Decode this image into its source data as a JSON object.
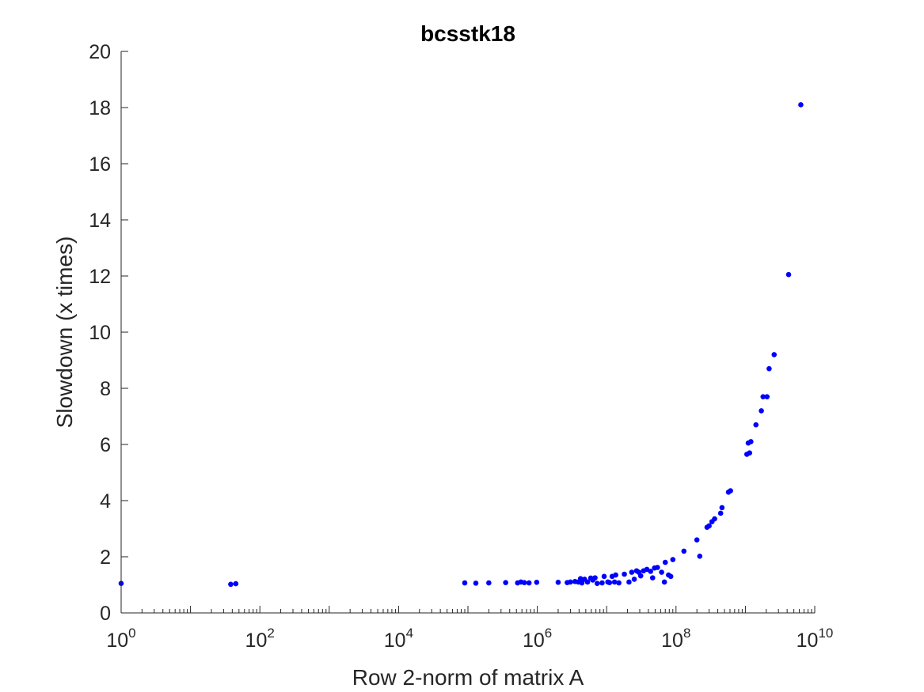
{
  "chart_data": {
    "type": "scatter",
    "title": "bcsstk18",
    "xlabel": "Row 2-norm of matrix A",
    "ylabel": "Slowdown (x times)",
    "x_scale": "log",
    "xlim": [
      1,
      10000000000
    ],
    "ylim": [
      0,
      20
    ],
    "x_tick_labels": [
      {
        "base": "10",
        "exp": "0"
      },
      {
        "base": "10",
        "exp": "2"
      },
      {
        "base": "10",
        "exp": "4"
      },
      {
        "base": "10",
        "exp": "6"
      },
      {
        "base": "10",
        "exp": "8"
      },
      {
        "base": "10",
        "exp": "10"
      }
    ],
    "y_ticks": [
      0,
      2,
      4,
      6,
      8,
      10,
      12,
      14,
      16,
      18,
      20
    ],
    "y_tick_labels": [
      "0",
      "2",
      "4",
      "6",
      "8",
      "10",
      "12",
      "14",
      "16",
      "18",
      "20"
    ],
    "grid": false,
    "marker_color": "#0000ff",
    "series": [
      {
        "points": [
          [
            1,
            1.05
          ],
          [
            38,
            1.02
          ],
          [
            45,
            1.04
          ],
          [
            90000,
            1.07
          ],
          [
            130000,
            1.06
          ],
          [
            200000,
            1.07
          ],
          [
            350000,
            1.08
          ],
          [
            520000,
            1.07
          ],
          [
            580000,
            1.1
          ],
          [
            650000,
            1.08
          ],
          [
            760000,
            1.07
          ],
          [
            980000,
            1.09
          ],
          [
            2000000,
            1.09
          ],
          [
            2700000,
            1.08
          ],
          [
            3000000,
            1.1
          ],
          [
            3500000,
            1.12
          ],
          [
            3900000,
            1.1
          ],
          [
            4200000,
            1.22
          ],
          [
            4400000,
            1.07
          ],
          [
            4800000,
            1.2
          ],
          [
            5300000,
            1.1
          ],
          [
            5900000,
            1.24
          ],
          [
            6300000,
            1.17
          ],
          [
            6800000,
            1.25
          ],
          [
            7300000,
            1.05
          ],
          [
            8600000,
            1.07
          ],
          [
            9200000,
            1.3
          ],
          [
            10400000,
            1.1
          ],
          [
            11000000,
            1.08
          ],
          [
            12000000,
            1.3
          ],
          [
            13000000,
            1.1
          ],
          [
            13500000,
            1.35
          ],
          [
            15000000,
            1.07
          ],
          [
            18000000,
            1.38
          ],
          [
            21000000,
            1.1
          ],
          [
            23000000,
            1.45
          ],
          [
            25000000,
            1.2
          ],
          [
            27000000,
            1.5
          ],
          [
            29000000,
            1.45
          ],
          [
            31000000,
            1.32
          ],
          [
            34000000,
            1.5
          ],
          [
            38000000,
            1.55
          ],
          [
            43000000,
            1.48
          ],
          [
            46000000,
            1.25
          ],
          [
            49000000,
            1.6
          ],
          [
            54000000,
            1.62
          ],
          [
            62000000,
            1.45
          ],
          [
            68000000,
            1.1
          ],
          [
            70000000,
            1.8
          ],
          [
            78000000,
            1.35
          ],
          [
            84000000,
            1.3
          ],
          [
            90000000,
            1.9
          ],
          [
            130000000,
            2.2
          ],
          [
            200000000,
            2.6
          ],
          [
            220000000,
            2.02
          ],
          [
            280000000,
            3.05
          ],
          [
            300000000,
            3.1
          ],
          [
            330000000,
            3.25
          ],
          [
            360000000,
            3.35
          ],
          [
            440000000,
            3.55
          ],
          [
            460000000,
            3.75
          ],
          [
            570000000,
            4.3
          ],
          [
            610000000,
            4.35
          ],
          [
            1050000000,
            5.65
          ],
          [
            1100000000,
            6.05
          ],
          [
            1150000000,
            5.7
          ],
          [
            1200000000,
            6.1
          ],
          [
            1420000000,
            6.7
          ],
          [
            1700000000,
            7.2
          ],
          [
            1800000000,
            7.7
          ],
          [
            2050000000,
            7.7
          ],
          [
            2200000000,
            8.7
          ],
          [
            2600000000,
            9.2
          ],
          [
            4200000000,
            12.05
          ],
          [
            6300000000,
            18.1
          ]
        ]
      }
    ]
  }
}
